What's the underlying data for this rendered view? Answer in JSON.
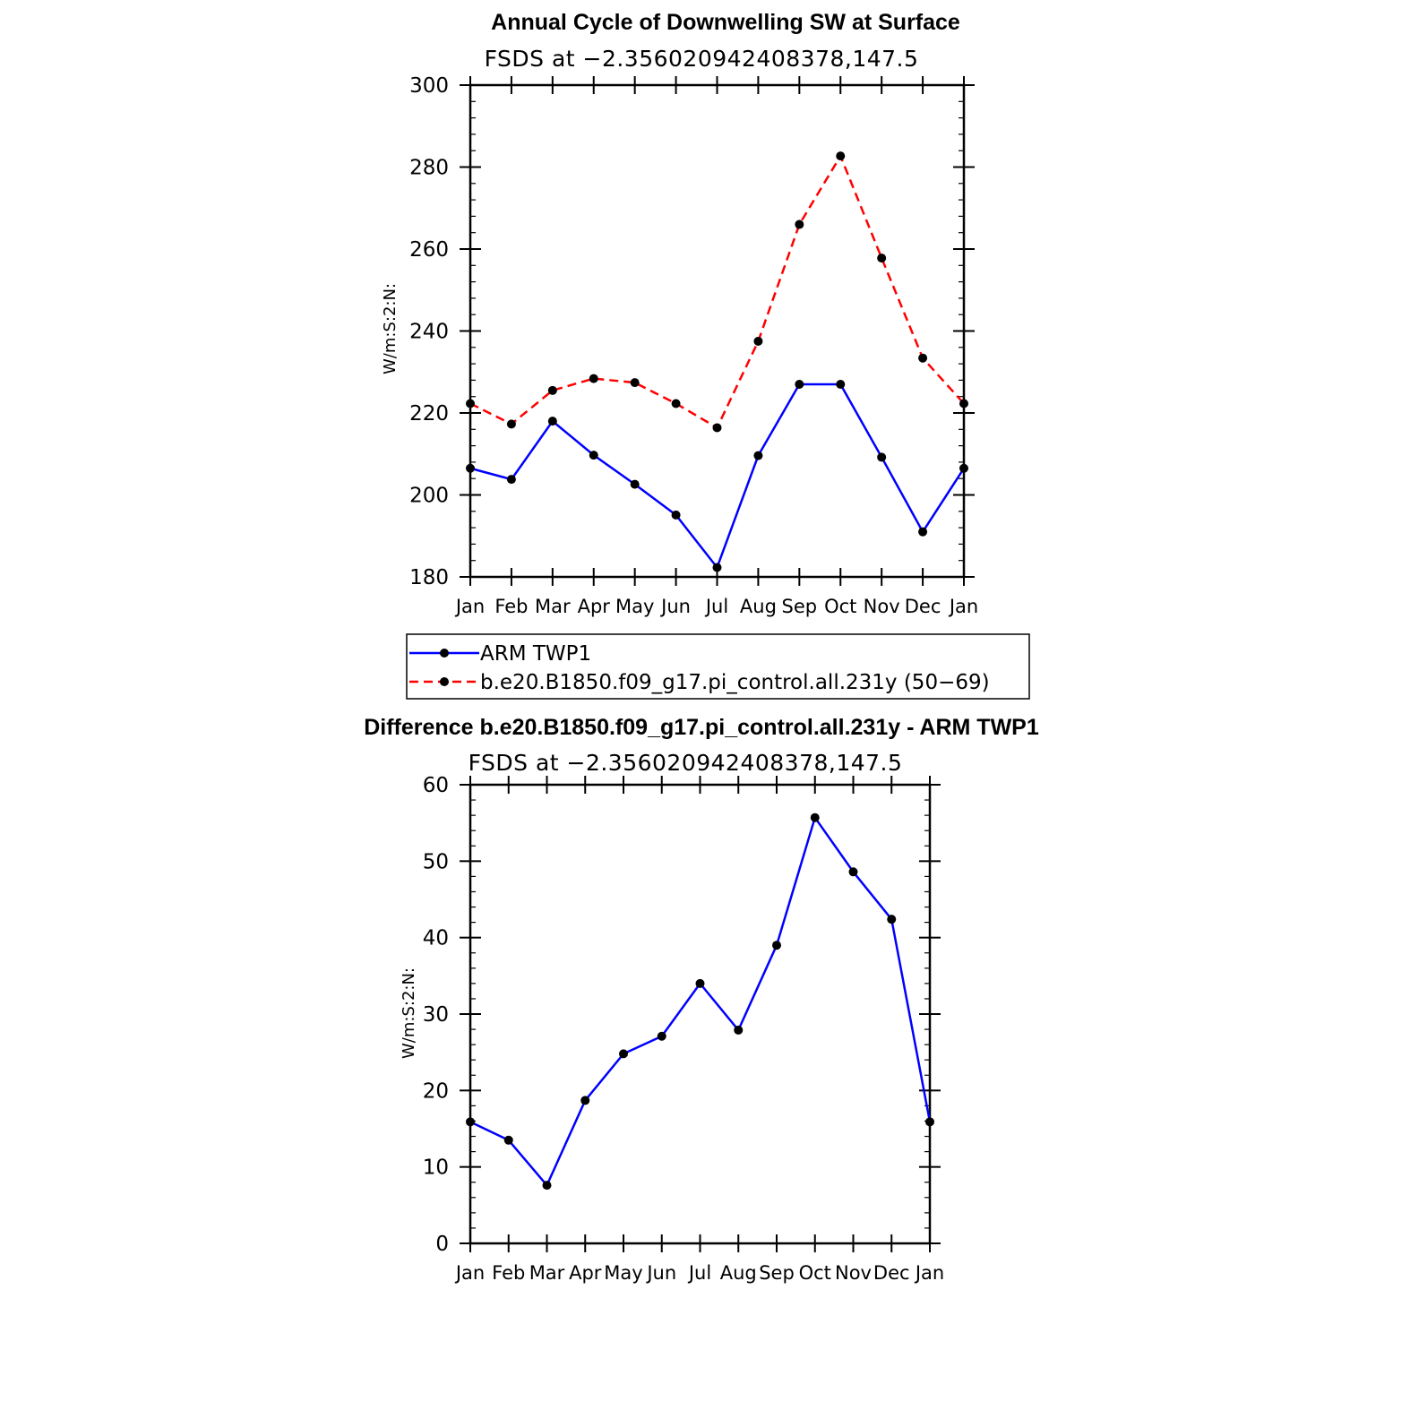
{
  "chart_data": [
    {
      "type": "line",
      "title": "Annual Cycle of Downwelling SW at Surface",
      "subtitle": "FSDS at −2.356020942408378,147.5",
      "xlabel": "",
      "ylabel": "W/m:S:2:N:",
      "categories": [
        "Jan",
        "Feb",
        "Mar",
        "Apr",
        "May",
        "Jun",
        "Jul",
        "Aug",
        "Sep",
        "Oct",
        "Nov",
        "Dec",
        "Jan"
      ],
      "ylim": [
        180,
        300
      ],
      "yticks": [
        180,
        200,
        220,
        240,
        260,
        280,
        300
      ],
      "series": [
        {
          "name": "ARM TWP1",
          "color": "#0000ff",
          "style": "solid",
          "values": [
            206.5,
            203.8,
            218.0,
            209.7,
            202.6,
            195.1,
            182.3,
            209.6,
            227.0,
            227.0,
            209.2,
            191.0,
            206.5
          ]
        },
        {
          "name": "b.e20.B1850.f09_g17.pi_control.all.231y (50−69)",
          "color": "#ff0000",
          "style": "dashed",
          "values": [
            222.3,
            217.3,
            225.5,
            228.4,
            227.4,
            222.3,
            216.4,
            237.5,
            266.0,
            282.7,
            257.8,
            233.4,
            222.3
          ]
        }
      ],
      "legend_placement": "below"
    },
    {
      "type": "line",
      "title": "Difference b.e20.B1850.f09_g17.pi_control.all.231y - ARM TWP1",
      "subtitle": "FSDS at −2.356020942408378,147.5",
      "xlabel": "",
      "ylabel": "W/m:S:2:N:",
      "categories": [
        "Jan",
        "Feb",
        "Mar",
        "Apr",
        "May",
        "Jun",
        "Jul",
        "Aug",
        "Sep",
        "Oct",
        "Nov",
        "Dec",
        "Jan"
      ],
      "ylim": [
        0,
        60
      ],
      "yticks": [
        0,
        10,
        20,
        30,
        40,
        50,
        60
      ],
      "series": [
        {
          "color": "#0000ff",
          "style": "solid",
          "values": [
            15.9,
            13.5,
            7.6,
            18.7,
            24.8,
            27.1,
            34.0,
            27.9,
            39.0,
            55.7,
            48.6,
            42.4,
            15.9
          ]
        }
      ]
    }
  ]
}
